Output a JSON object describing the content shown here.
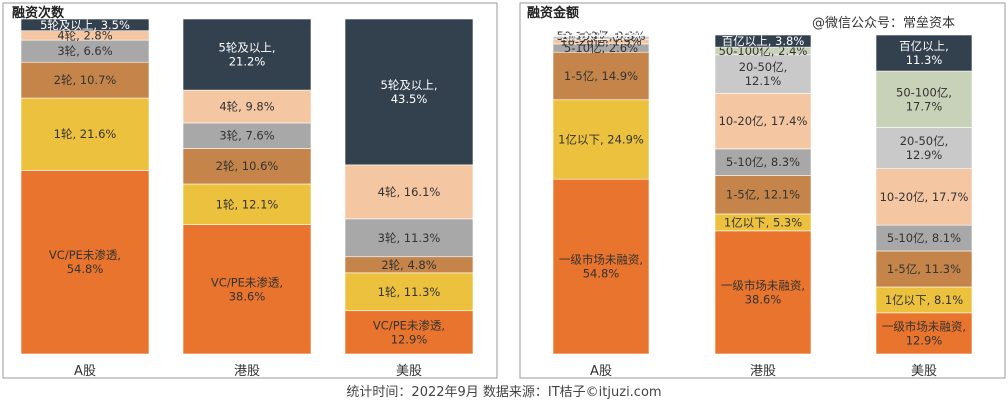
{
  "watermark_text": "@微信公众号：常垒资本",
  "footer_text": "统计时间：2022年9月  数据来源：IT桔子©itjuzi.com",
  "chart_data": [
    {
      "type": "bar",
      "stacked": true,
      "normalized_percent": true,
      "title": "融资次数",
      "categories": [
        "A股",
        "港股",
        "美股"
      ],
      "segments": [
        {
          "category": "A股",
          "label": "VC/PE未渗透,\n54.8%",
          "value": 54.8,
          "color": "#e8742d"
        },
        {
          "category": "A股",
          "label": "1轮, 21.6%",
          "value": 21.6,
          "color": "#ecc13e"
        },
        {
          "category": "A股",
          "label": "2轮, 10.7%",
          "value": 10.7,
          "color": "#c5854a"
        },
        {
          "category": "A股",
          "label": "3轮, 6.6%",
          "value": 6.6,
          "color": "#a8a8a8"
        },
        {
          "category": "A股",
          "label": "4轮, 2.8%",
          "value": 2.8,
          "color": "#f5c6a2"
        },
        {
          "category": "A股",
          "label": "5轮及以上, 3.5%",
          "value": 3.5,
          "color": "#33404e"
        },
        {
          "category": "港股",
          "label": "VC/PE未渗透,\n38.6%",
          "value": 38.6,
          "color": "#e8742d"
        },
        {
          "category": "港股",
          "label": "1轮, 12.1%",
          "value": 12.1,
          "color": "#ecc13e"
        },
        {
          "category": "港股",
          "label": "2轮, 10.6%",
          "value": 10.6,
          "color": "#c5854a"
        },
        {
          "category": "港股",
          "label": "3轮, 7.6%",
          "value": 7.6,
          "color": "#a8a8a8"
        },
        {
          "category": "港股",
          "label": "4轮, 9.8%",
          "value": 9.8,
          "color": "#f5c6a2"
        },
        {
          "category": "港股",
          "label": "5轮及以上,\n21.2%",
          "value": 21.2,
          "color": "#33404e"
        },
        {
          "category": "美股",
          "label": "VC/PE未渗透,\n12.9%",
          "value": 12.9,
          "color": "#e8742d"
        },
        {
          "category": "美股",
          "label": "1轮, 11.3%",
          "value": 11.3,
          "color": "#ecc13e"
        },
        {
          "category": "美股",
          "label": "2轮, 4.8%",
          "value": 4.8,
          "color": "#c5854a"
        },
        {
          "category": "美股",
          "label": "3轮, 11.3%",
          "value": 11.3,
          "color": "#a8a8a8"
        },
        {
          "category": "美股",
          "label": "4轮, 16.1%",
          "value": 16.1,
          "color": "#f5c6a2"
        },
        {
          "category": "美股",
          "label": "5轮及以上,\n43.5%",
          "value": 43.5,
          "color": "#33404e"
        }
      ]
    },
    {
      "type": "bar",
      "stacked": true,
      "normalized_percent": true,
      "title": "融资金额",
      "categories": [
        "A股",
        "港股",
        "美股"
      ],
      "segments": [
        {
          "category": "A股",
          "label": "一级市场未融资,\n54.8%",
          "value": 54.8,
          "color": "#e8742d"
        },
        {
          "category": "A股",
          "label": "1亿以下, 24.9%",
          "value": 24.9,
          "color": "#ecc13e"
        },
        {
          "category": "A股",
          "label": "1-5亿, 14.9%",
          "value": 14.9,
          "color": "#c5854a"
        },
        {
          "category": "A股",
          "label": "5-10亿, 2.6%",
          "value": 2.6,
          "color": "#a8a8a8"
        },
        {
          "category": "A股",
          "label": "10-20亿, 1.5%",
          "value": 1.5,
          "color": "#f5c6a2"
        },
        {
          "category": "A股",
          "label": "20-50亿, 0.8%",
          "value": 0.8,
          "color": "#c9c9c9"
        },
        {
          "category": "A股",
          "label": "50-100亿, 0.3%",
          "value": 0.3,
          "color": "#c8d2b8"
        },
        {
          "category": "A股",
          "label": "百亿以上, 0.2%",
          "value": 0.2,
          "color": "#33404e"
        },
        {
          "category": "港股",
          "label": "一级市场未融资,\n38.6%",
          "value": 38.6,
          "color": "#e8742d"
        },
        {
          "category": "港股",
          "label": "1亿以下, 5.3%",
          "value": 5.3,
          "color": "#ecc13e"
        },
        {
          "category": "港股",
          "label": "1-5亿, 12.1%",
          "value": 12.1,
          "color": "#c5854a"
        },
        {
          "category": "港股",
          "label": "5-10亿, 8.3%",
          "value": 8.3,
          "color": "#a8a8a8"
        },
        {
          "category": "港股",
          "label": "10-20亿, 17.4%",
          "value": 17.4,
          "color": "#f5c6a2"
        },
        {
          "category": "港股",
          "label": "20-50亿,\n12.1%",
          "value": 12.1,
          "color": "#c9c9c9"
        },
        {
          "category": "港股",
          "label": "50-100亿, 2.4%",
          "value": 2.4,
          "color": "#c8d2b8"
        },
        {
          "category": "港股",
          "label": "百亿以上, 3.8%",
          "value": 3.8,
          "color": "#33404e"
        },
        {
          "category": "美股",
          "label": "一级市场未融资,\n12.9%",
          "value": 12.9,
          "color": "#e8742d"
        },
        {
          "category": "美股",
          "label": "1亿以下, 8.1%",
          "value": 8.1,
          "color": "#ecc13e"
        },
        {
          "category": "美股",
          "label": "1-5亿, 11.3%",
          "value": 11.3,
          "color": "#c5854a"
        },
        {
          "category": "美股",
          "label": "5-10亿, 8.1%",
          "value": 8.1,
          "color": "#a8a8a8"
        },
        {
          "category": "美股",
          "label": "10-20亿, 17.7%",
          "value": 17.7,
          "color": "#f5c6a2"
        },
        {
          "category": "美股",
          "label": "20-50亿,\n12.9%",
          "value": 12.9,
          "color": "#c9c9c9"
        },
        {
          "category": "美股",
          "label": "50-100亿,\n17.7%",
          "value": 17.7,
          "color": "#c8d2b8"
        },
        {
          "category": "美股",
          "label": "百亿以上,\n11.3%",
          "value": 11.3,
          "color": "#33404e"
        }
      ]
    }
  ]
}
